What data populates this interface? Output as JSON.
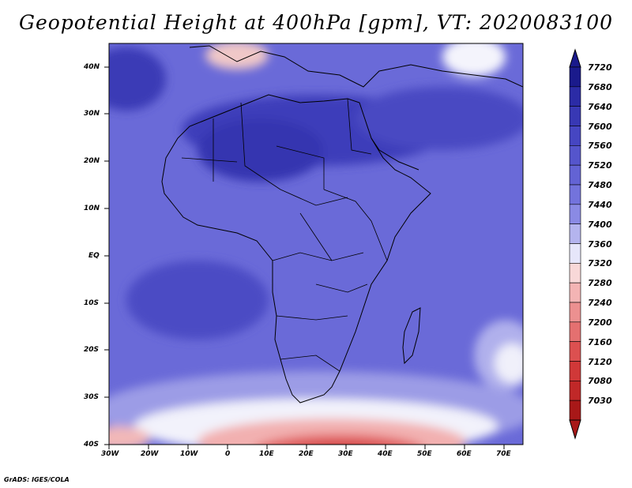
{
  "title": "Geopotential Height at 400hPa [gpm], VT: 2020083100",
  "credit": "GrADS: IGES/COLA",
  "map": {
    "lon_range": [
      -30,
      75
    ],
    "lat_range": [
      -40,
      45
    ],
    "lat_labels": [
      "40N",
      "30N",
      "20N",
      "10N",
      "EQ",
      "10S",
      "20S",
      "30S",
      "40S"
    ],
    "lon_labels": [
      "30W",
      "20W",
      "10W",
      "0",
      "10E",
      "20E",
      "30E",
      "40E",
      "50E",
      "60E",
      "70E"
    ]
  },
  "colorbar": {
    "levels": [
      "7720",
      "7680",
      "7640",
      "7600",
      "7560",
      "7520",
      "7480",
      "7440",
      "7400",
      "7360",
      "7320",
      "7280",
      "7240",
      "7200",
      "7160",
      "7120",
      "7080",
      "7030"
    ],
    "colors": [
      "#1a1a8c",
      "#2b2ba6",
      "#3838b4",
      "#4646c2",
      "#5555cc",
      "#6363d4",
      "#7373dc",
      "#8a8ae4",
      "#b4b4ee",
      "#e6e6fa",
      "#f8d8d8",
      "#f3b4b4",
      "#ec9090",
      "#e47070",
      "#dc5050",
      "#d03838",
      "#c02828",
      "#a81818"
    ]
  }
}
